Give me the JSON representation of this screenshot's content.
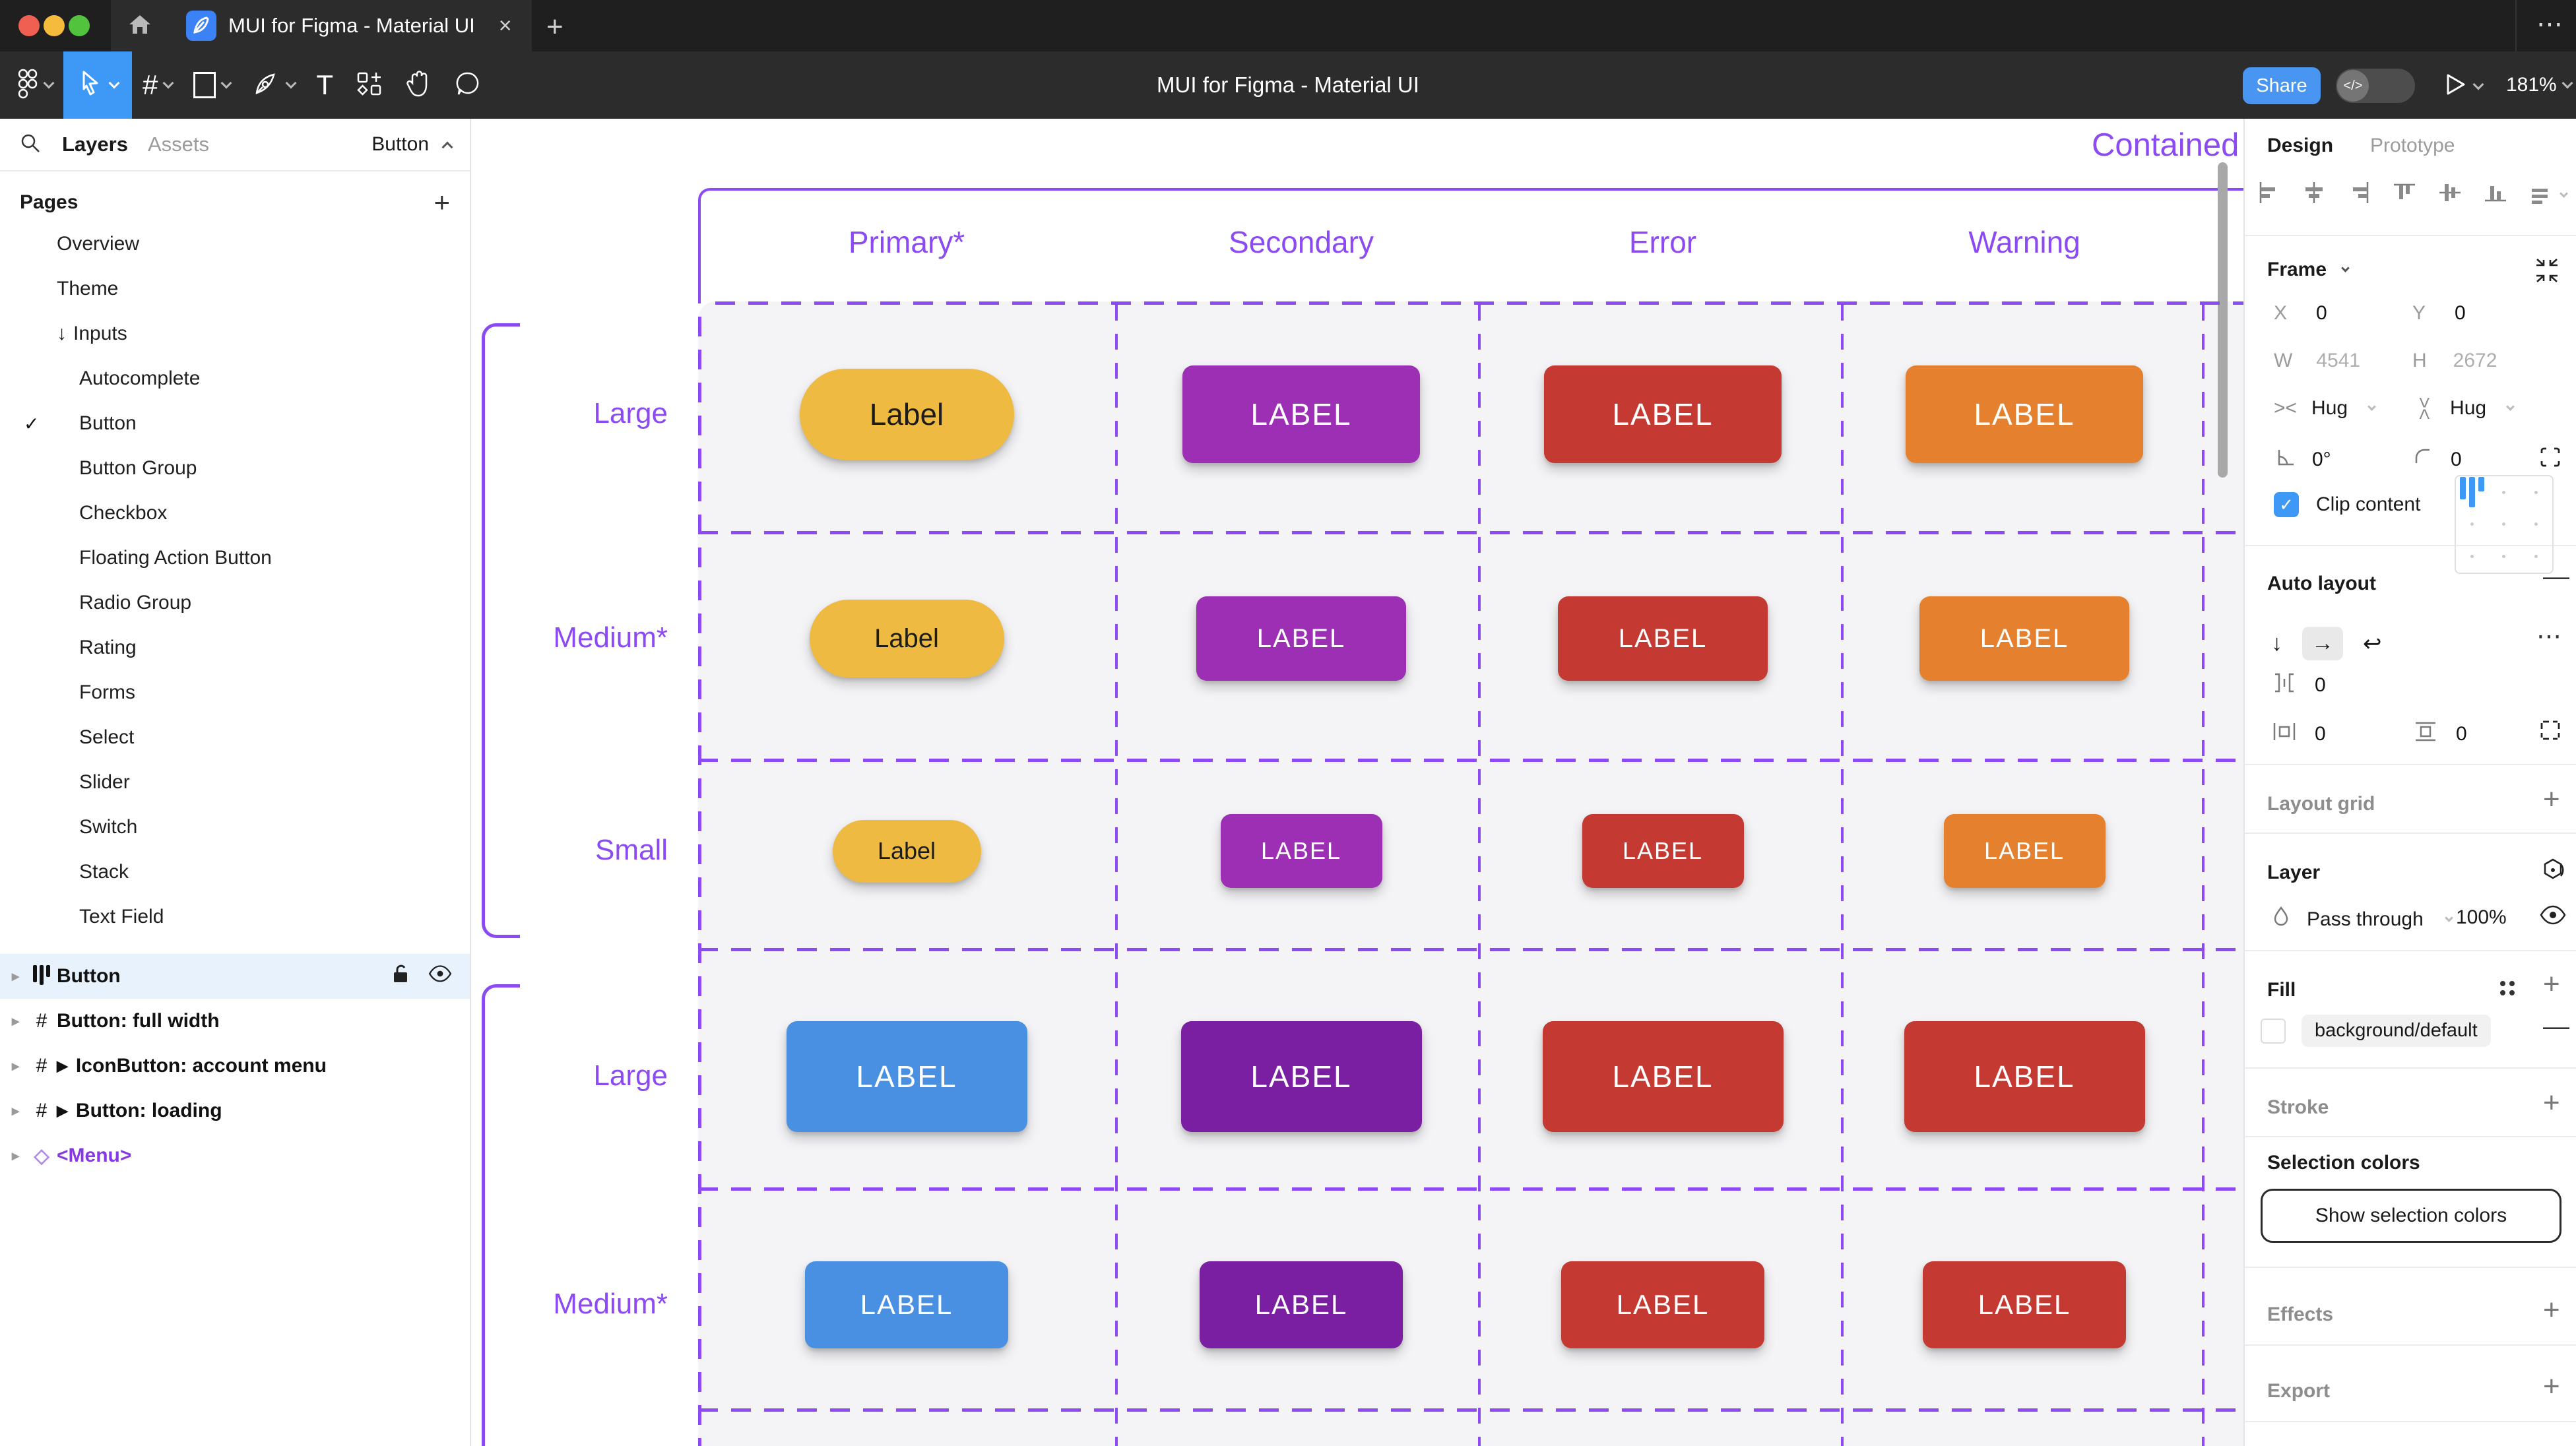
{
  "window": {
    "tab_title": "MUI for Figma - Material UI",
    "close_glyph": "×",
    "new_tab_glyph": "+",
    "overflow_glyph": "⋯"
  },
  "toolbar": {
    "doc_title": "MUI for Figma - Material UI",
    "frame_tool_glyph": "#",
    "text_tool_glyph": "T",
    "share_label": "Share",
    "dev_toggle_glyph": "</>",
    "zoom_level": "181%"
  },
  "sidebar": {
    "tabs": {
      "layers": "Layers",
      "assets": "Assets"
    },
    "current_page": "Button",
    "pages_title": "Pages",
    "pages": [
      {
        "label": "Overview",
        "indent": 1
      },
      {
        "label": "Theme",
        "indent": 1
      },
      {
        "label": "Inputs",
        "indent": 1,
        "arrow": "↓"
      },
      {
        "label": "Autocomplete",
        "indent": 2
      },
      {
        "label": "Button",
        "indent": 2,
        "checked": true
      },
      {
        "label": "Button Group",
        "indent": 2
      },
      {
        "label": "Checkbox",
        "indent": 2
      },
      {
        "label": "Floating Action Button",
        "indent": 2
      },
      {
        "label": "Radio Group",
        "indent": 2
      },
      {
        "label": "Rating",
        "indent": 2
      },
      {
        "label": "Forms",
        "indent": 2
      },
      {
        "label": "Select",
        "indent": 2
      },
      {
        "label": "Slider",
        "indent": 2
      },
      {
        "label": "Switch",
        "indent": 2
      },
      {
        "label": "Stack",
        "indent": 2
      },
      {
        "label": "Text Field",
        "indent": 2
      }
    ],
    "layers": [
      {
        "label": "Button",
        "icon": "autolayout",
        "selected": true
      },
      {
        "label": "Button: full width",
        "icon": "frame"
      },
      {
        "label": "IconButton: account menu",
        "icon": "frame",
        "component_arrow": true
      },
      {
        "label": "Button: loading",
        "icon": "frame",
        "component_arrow": true
      },
      {
        "label": "<Menu>",
        "icon": "diamond",
        "purple": true
      }
    ]
  },
  "canvas": {
    "frame_title": "Contained",
    "columns": [
      "Primary*",
      "Secondary",
      "Error",
      "Warning"
    ],
    "palette": {
      "primary_yellow": "#EFBA41",
      "secondary_purple": "#9C2FB4",
      "error_red": "#C43A32",
      "warning_orange": "#E5802E",
      "primary_blue": "#4A90E2",
      "secondary_dark_purple": "#7B1FA2",
      "annotation_purple": "#8C4BF2",
      "table_fill": "#F4F4F6"
    },
    "rows": [
      {
        "size": "Large",
        "buttons": [
          {
            "variant": "primary_yellow",
            "text": "Label",
            "text_color": "#1c1c1c"
          },
          {
            "variant": "secondary_purple",
            "text": "LABEL",
            "text_color": "#ffffff"
          },
          {
            "variant": "error_red",
            "text": "LABEL",
            "text_color": "#ffffff"
          },
          {
            "variant": "warning_orange",
            "text": "LABEL",
            "text_color": "#ffffff"
          }
        ]
      },
      {
        "size": "Medium*",
        "buttons": [
          {
            "variant": "primary_yellow",
            "text": "Label",
            "text_color": "#1c1c1c"
          },
          {
            "variant": "secondary_purple",
            "text": "LABEL",
            "text_color": "#ffffff"
          },
          {
            "variant": "error_red",
            "text": "LABEL",
            "text_color": "#ffffff"
          },
          {
            "variant": "warning_orange",
            "text": "LABEL",
            "text_color": "#ffffff"
          }
        ]
      },
      {
        "size": "Small",
        "buttons": [
          {
            "variant": "primary_yellow",
            "text": "Label",
            "text_color": "#1c1c1c"
          },
          {
            "variant": "secondary_purple",
            "text": "LABEL",
            "text_color": "#ffffff"
          },
          {
            "variant": "error_red",
            "text": "LABEL",
            "text_color": "#ffffff"
          },
          {
            "variant": "warning_orange",
            "text": "LABEL",
            "text_color": "#ffffff"
          }
        ]
      },
      {
        "size": "Large",
        "buttons": [
          {
            "variant": "primary_blue",
            "text": "LABEL",
            "text_color": "#ffffff"
          },
          {
            "variant": "secondary_dark_purple",
            "text": "LABEL",
            "text_color": "#ffffff"
          },
          {
            "variant": "error_red",
            "text": "LABEL",
            "text_color": "#ffffff"
          },
          {
            "variant": "error_red",
            "text": "LABEL",
            "text_color": "#ffffff"
          }
        ]
      },
      {
        "size": "Medium*",
        "buttons": [
          {
            "variant": "primary_blue",
            "text": "LABEL",
            "text_color": "#ffffff"
          },
          {
            "variant": "secondary_dark_purple",
            "text": "LABEL",
            "text_color": "#ffffff"
          },
          {
            "variant": "error_red",
            "text": "LABEL",
            "text_color": "#ffffff"
          },
          {
            "variant": "error_red",
            "text": "LABEL",
            "text_color": "#ffffff"
          }
        ]
      }
    ]
  },
  "inspector": {
    "tabs": {
      "design": "Design",
      "prototype": "Prototype"
    },
    "frame": {
      "section_title": "Frame",
      "x_label": "X",
      "x_value": "0",
      "y_label": "Y",
      "y_value": "0",
      "w_label": "W",
      "w_value": "4541",
      "h_label": "H",
      "h_value": "2672",
      "h_sizing": "Hug",
      "v_sizing": "Hug",
      "rotation": "0°",
      "corner_radius": "0",
      "clip_content_label": "Clip content",
      "check_glyph": "✓"
    },
    "auto_layout": {
      "section_title": "Auto layout",
      "gap_value": "0",
      "padding_h_value": "0",
      "padding_v_value": "0",
      "dir_down_glyph": "↓",
      "dir_right_glyph": "→",
      "wrap_glyph": "↩",
      "more_glyph": "⋯"
    },
    "layout_grid_title": "Layout grid",
    "layer": {
      "section_title": "Layer",
      "blend_mode": "Pass through",
      "opacity": "100%"
    },
    "fill": {
      "section_title": "Fill",
      "style_name": "background/default"
    },
    "stroke_title": "Stroke",
    "selection_colors_title": "Selection colors",
    "show_selection_colors_label": "Show selection colors",
    "effects_title": "Effects",
    "export_title": "Export"
  }
}
